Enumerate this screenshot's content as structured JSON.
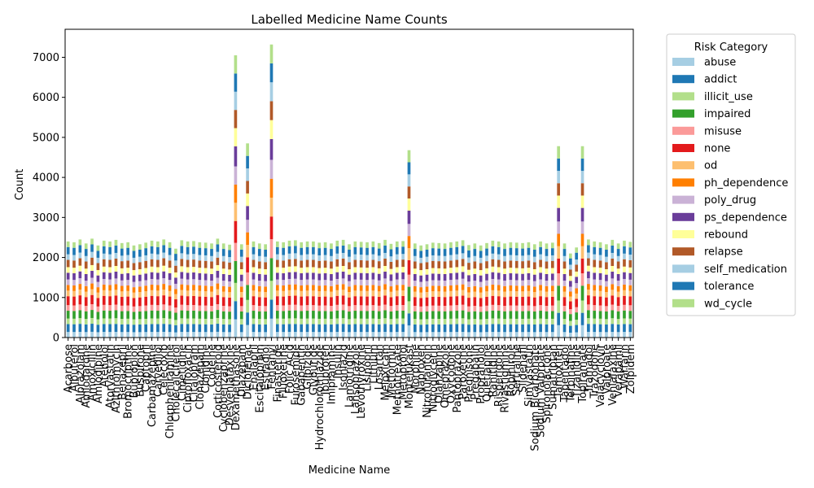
{
  "chart_data": {
    "type": "bar",
    "stacked": true,
    "title": "Labelled Medicine Name Counts",
    "xlabel": "Medicine Name",
    "ylabel": "Count",
    "ylim": [
      0,
      7700
    ],
    "yticks": [
      0,
      1000,
      2000,
      3000,
      4000,
      5000,
      6000,
      7000
    ],
    "legend_title": "Risk Category",
    "legend_position": "outside-right",
    "grid": false,
    "categories": [
      "Acarbose",
      "Albuterol",
      "Alprazolam",
      "Amiodarone",
      "Amoxicillin",
      "Amlodipine",
      "Atenolol",
      "Atorvastatin",
      "Azithromycin",
      "Benazepril",
      "Bromocriptine",
      "Bupropion",
      "Buspirone",
      "Captopril",
      "Carbamazepine",
      "Carvedilol",
      "Celecoxib",
      "Chlorpheniramine",
      "Cholecalciferol",
      "Cimetidine",
      "Ciprofloxacin",
      "Citalopram",
      "Clonazepam",
      "Clonidine",
      "Codeine",
      "Corticosteroid",
      "Cyclobenzaprine",
      "Desvenlafaxine",
      "Dexamethasone",
      "Diazepam",
      "Diclofenac",
      "Enalapril",
      "Escitalopram",
      "Estradiol",
      "Fentanyl",
      "Finasteride",
      "Fluoxetine",
      "Folic Acid",
      "Furosemide",
      "Gabapentin",
      "Glipizide",
      "Glyburide",
      "Hydrochlorothiazide",
      "Ibuprofen",
      "Imipramine",
      "Insulin",
      "Isoniazid",
      "Lamotrigine",
      "Lansoprazole",
      "Levothyroxine",
      "Lisinopril",
      "Lithium",
      "Losartan",
      "Meloxicam",
      "Metformin",
      "Methotrexate",
      "Metoprolol",
      "Montelukast",
      "Morphine",
      "Naproxen",
      "Nitrofurantoin",
      "Nitroglycerin",
      "Olanzapine",
      "Omeprazole",
      "Oxycodone",
      "Pantoprazole",
      "Paroxetine",
      "Prednisone",
      "Pregabalin",
      "Propranolol",
      "Quetiapine",
      "Ranitidine",
      "Risperidone",
      "Rivastigmine",
      "Ropinirole",
      "Sertraline",
      "Sildenafil",
      "Simvastatin",
      "Sodium Bicarbonate",
      "Sodium Valproate",
      "Spironolactone",
      "Sumatriptan",
      "Tamoxifen",
      "Tapentadol",
      "Terbinafine",
      "Tizanidine",
      "Topiramate",
      "Tramadol",
      "Trazodone",
      "Valacyclovir",
      "Valproate",
      "Venlafaxine",
      "Verapamil",
      "Warfarin",
      "Zolpidem"
    ],
    "series": [
      {
        "name": "abuse",
        "color": "#a6cee3"
      },
      {
        "name": "addict",
        "color": "#1f78b4"
      },
      {
        "name": "illicit_use",
        "color": "#b2df8a"
      },
      {
        "name": "impaired",
        "color": "#33a02c"
      },
      {
        "name": "misuse",
        "color": "#fb9a99"
      },
      {
        "name": "none",
        "color": "#e31a1c"
      },
      {
        "name": "od",
        "color": "#fdbf6f"
      },
      {
        "name": "ph_dependence",
        "color": "#ff7f00"
      },
      {
        "name": "poly_drug",
        "color": "#cab2d6"
      },
      {
        "name": "ps_dependence",
        "color": "#6a3d9a"
      },
      {
        "name": "rebound",
        "color": "#ffff99"
      },
      {
        "name": "relapse",
        "color": "#b15928"
      },
      {
        "name": "self_medication",
        "color": "#a6cee3"
      },
      {
        "name": "tolerance",
        "color": "#1f78b4"
      },
      {
        "name": "wd_cycle",
        "color": "#b2df8a"
      }
    ],
    "totals": [
      2400,
      2380,
      2450,
      2350,
      2470,
      2300,
      2420,
      2400,
      2440,
      2360,
      2380,
      2300,
      2330,
      2370,
      2420,
      2400,
      2450,
      2380,
      2220,
      2430,
      2400,
      2410,
      2380,
      2370,
      2350,
      2470,
      2350,
      2320,
      7050,
      2330,
      4850,
      2400,
      2350,
      2330,
      7320,
      2400,
      2380,
      2420,
      2430,
      2380,
      2400,
      2400,
      2370,
      2380,
      2350,
      2420,
      2440,
      2330,
      2400,
      2390,
      2380,
      2400,
      2360,
      2440,
      2340,
      2400,
      2410,
      4680,
      2350,
      2300,
      2330,
      2370,
      2360,
      2350,
      2380,
      2400,
      2430,
      2310,
      2350,
      2300,
      2360,
      2420,
      2400,
      2350,
      2380,
      2370,
      2360,
      2380,
      2330,
      2400,
      2350,
      2370,
      4780,
      2350,
      2100,
      2250,
      4780,
      2450,
      2400,
      2380,
      2330,
      2440,
      2350,
      2420,
      2390
    ]
  }
}
